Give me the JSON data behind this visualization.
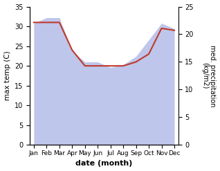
{
  "months": [
    "Jan",
    "Feb",
    "Mar",
    "Apr",
    "May",
    "Jun",
    "Jul",
    "Aug",
    "Sep",
    "Oct",
    "Nov",
    "Dec"
  ],
  "max_temp": [
    31,
    31,
    31,
    24,
    20,
    20,
    20,
    20,
    21,
    23,
    29.5,
    29
  ],
  "precipitation": [
    22,
    23,
    23,
    17,
    15,
    15,
    14,
    14.5,
    16,
    19,
    22,
    21
  ],
  "fill_color": "#b3bce8",
  "line_color": "#c0392b",
  "fill_alpha": 0.85,
  "xlabel": "date (month)",
  "ylabel_left": "max temp (C)",
  "ylabel_right": "med. precipitation\n(kg/m2)",
  "ylim_left": [
    0,
    35
  ],
  "ylim_right": [
    0,
    25
  ],
  "yticks_left": [
    0,
    5,
    10,
    15,
    20,
    25,
    30,
    35
  ],
  "yticks_right": [
    0,
    5,
    10,
    15,
    20,
    25
  ],
  "bg_color": "#ffffff"
}
